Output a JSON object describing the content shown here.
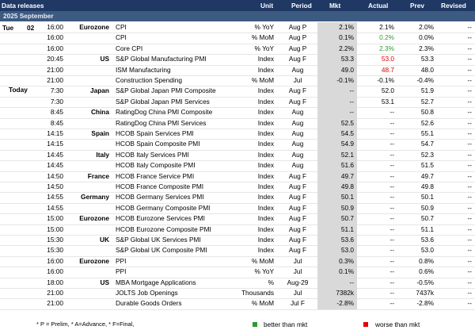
{
  "header": {
    "title": "Data releases",
    "unit": "Unit",
    "period": "Period",
    "mkt": "Mkt",
    "actual": "Actual",
    "prev": "Prev",
    "revised": "Revised"
  },
  "subheader": {
    "month": "2025 September"
  },
  "day_labels": {
    "weekday": "Tue",
    "day": "02",
    "today": "Today"
  },
  "rows": [
    {
      "time": "16:00",
      "region": "Eurozone",
      "event": "CPI",
      "unit": "% YoY",
      "period": "Aug P",
      "mkt": "2.1%",
      "actual": "2.1%",
      "prev": "2.0%",
      "revised": "--",
      "actual_color": ""
    },
    {
      "time": "16:00",
      "region": "",
      "event": "CPI",
      "unit": "% MoM",
      "period": "Aug P",
      "mkt": "0.1%",
      "actual": "0.2%",
      "prev": "0.0%",
      "revised": "--",
      "actual_color": "green"
    },
    {
      "time": "16:00",
      "region": "",
      "event": "Core CPI",
      "unit": "% YoY",
      "period": "Aug P",
      "mkt": "2.2%",
      "actual": "2.3%",
      "prev": "2.3%",
      "revised": "--",
      "actual_color": "green"
    },
    {
      "time": "20:45",
      "region": "US",
      "event": "S&P Global Manufacturing PMI",
      "unit": "Index",
      "period": "Aug F",
      "mkt": "53.3",
      "actual": "53.0",
      "prev": "53.3",
      "revised": "--",
      "actual_color": "red"
    },
    {
      "time": "21:00",
      "region": "",
      "event": "ISM Manufacturing",
      "unit": "Index",
      "period": "Aug",
      "mkt": "49.0",
      "actual": "48.7",
      "prev": "48.0",
      "revised": "--",
      "actual_color": "red"
    },
    {
      "time": "21:00",
      "region": "",
      "event": "Construction Spending",
      "unit": "% MoM",
      "period": "Jul",
      "mkt": "-0.1%",
      "actual": "-0.1%",
      "prev": "-0.4%",
      "revised": "--",
      "actual_color": ""
    },
    {
      "time": "7:30",
      "region": "Japan",
      "event": "S&P Global Japan PMI Composite",
      "unit": "Index",
      "period": "Aug F",
      "mkt": "--",
      "actual": "52.0",
      "prev": "51.9",
      "revised": "--",
      "actual_color": ""
    },
    {
      "time": "7:30",
      "region": "",
      "event": "S&P Global Japan PMI Services",
      "unit": "Index",
      "period": "Aug F",
      "mkt": "--",
      "actual": "53.1",
      "prev": "52.7",
      "revised": "--",
      "actual_color": ""
    },
    {
      "time": "8:45",
      "region": "China",
      "event": "RatingDog China PMI Composite",
      "unit": "Index",
      "period": "Aug",
      "mkt": "--",
      "actual": "--",
      "prev": "50.8",
      "revised": "--",
      "actual_color": ""
    },
    {
      "time": "8:45",
      "region": "",
      "event": "RatingDog China PMI Services",
      "unit": "Index",
      "period": "Aug",
      "mkt": "52.5",
      "actual": "--",
      "prev": "52.6",
      "revised": "--",
      "actual_color": ""
    },
    {
      "time": "14:15",
      "region": "Spain",
      "event": "HCOB Spain Services PMI",
      "unit": "Index",
      "period": "Aug",
      "mkt": "54.5",
      "actual": "--",
      "prev": "55.1",
      "revised": "--",
      "actual_color": ""
    },
    {
      "time": "14:15",
      "region": "",
      "event": "HCOB Spain Composite PMI",
      "unit": "Index",
      "period": "Aug",
      "mkt": "54.9",
      "actual": "--",
      "prev": "54.7",
      "revised": "--",
      "actual_color": ""
    },
    {
      "time": "14:45",
      "region": "Italy",
      "event": "HCOB Italy Services PMI",
      "unit": "Index",
      "period": "Aug",
      "mkt": "52.1",
      "actual": "--",
      "prev": "52.3",
      "revised": "--",
      "actual_color": ""
    },
    {
      "time": "14:45",
      "region": "",
      "event": "HCOB Italy Composite PMI",
      "unit": "Index",
      "period": "Aug",
      "mkt": "51.6",
      "actual": "--",
      "prev": "51.5",
      "revised": "--",
      "actual_color": ""
    },
    {
      "time": "14:50",
      "region": "France",
      "event": "HCOB France Service PMI",
      "unit": "Index",
      "period": "Aug F",
      "mkt": "49.7",
      "actual": "--",
      "prev": "49.7",
      "revised": "--",
      "actual_color": ""
    },
    {
      "time": "14:50",
      "region": "",
      "event": "HCOB France Composite PMI",
      "unit": "Index",
      "period": "Aug F",
      "mkt": "49.8",
      "actual": "--",
      "prev": "49.8",
      "revised": "--",
      "actual_color": ""
    },
    {
      "time": "14:55",
      "region": "Germany",
      "event": "HCOB Germany Services PMI",
      "unit": "Index",
      "period": "Aug F",
      "mkt": "50.1",
      "actual": "--",
      "prev": "50.1",
      "revised": "--",
      "actual_color": ""
    },
    {
      "time": "14:55",
      "region": "",
      "event": "HCOB Germany Composite PMI",
      "unit": "Index",
      "period": "Aug F",
      "mkt": "50.9",
      "actual": "--",
      "prev": "50.9",
      "revised": "--",
      "actual_color": ""
    },
    {
      "time": "15:00",
      "region": "Eurozone",
      "event": "HCOB Eurozone Services PMI",
      "unit": "Index",
      "period": "Aug F",
      "mkt": "50.7",
      "actual": "--",
      "prev": "50.7",
      "revised": "--",
      "actual_color": ""
    },
    {
      "time": "15:00",
      "region": "",
      "event": "HCOB Eurozone Composite PMI",
      "unit": "Index",
      "period": "Aug F",
      "mkt": "51.1",
      "actual": "--",
      "prev": "51.1",
      "revised": "--",
      "actual_color": ""
    },
    {
      "time": "15:30",
      "region": "UK",
      "event": "S&P Global UK Services PMI",
      "unit": "Index",
      "period": "Aug F",
      "mkt": "53.6",
      "actual": "--",
      "prev": "53.6",
      "revised": "--",
      "actual_color": ""
    },
    {
      "time": "15:30",
      "region": "",
      "event": "S&P Global UK Composite PMI",
      "unit": "Index",
      "period": "Aug F",
      "mkt": "53.0",
      "actual": "--",
      "prev": "53.0",
      "revised": "--",
      "actual_color": ""
    },
    {
      "time": "16:00",
      "region": "Eurozone",
      "event": "PPI",
      "unit": "% MoM",
      "period": "Jul",
      "mkt": "0.3%",
      "actual": "--",
      "prev": "0.8%",
      "revised": "--",
      "actual_color": ""
    },
    {
      "time": "16:00",
      "region": "",
      "event": "PPI",
      "unit": "% YoY",
      "period": "Jul",
      "mkt": "0.1%",
      "actual": "--",
      "prev": "0.6%",
      "revised": "--",
      "actual_color": ""
    },
    {
      "time": "18:00",
      "region": "US",
      "event": "MBA Mortgage Applications",
      "unit": "%",
      "period": "Aug-29",
      "mkt": "--",
      "actual": "--",
      "prev": "-0.5%",
      "revised": "--",
      "actual_color": ""
    },
    {
      "time": "21:00",
      "region": "",
      "event": "JOLTS Job Openings",
      "unit": "Thousands",
      "period": "Jul",
      "mkt": "7382k",
      "actual": "--",
      "prev": "7437k",
      "revised": "--",
      "actual_color": ""
    },
    {
      "time": "21:00",
      "region": "",
      "event": "Durable Goods Orders",
      "unit": "% MoM",
      "period": "Jul F",
      "mkt": "-2.8%",
      "actual": "--",
      "prev": "-2.8%",
      "revised": "--",
      "actual_color": ""
    }
  ],
  "legend": {
    "footnote": "* P = Prelim, * A=Advance, * F=Final,",
    "better": "better than mkt",
    "worse": "worse than mkt"
  },
  "colors": {
    "header_bg": "#1f3864",
    "subheader_bg": "#3d5a80",
    "mkt_shade": "#d9d9d9",
    "better": "#2e9b2e",
    "worse": "#e00000"
  }
}
